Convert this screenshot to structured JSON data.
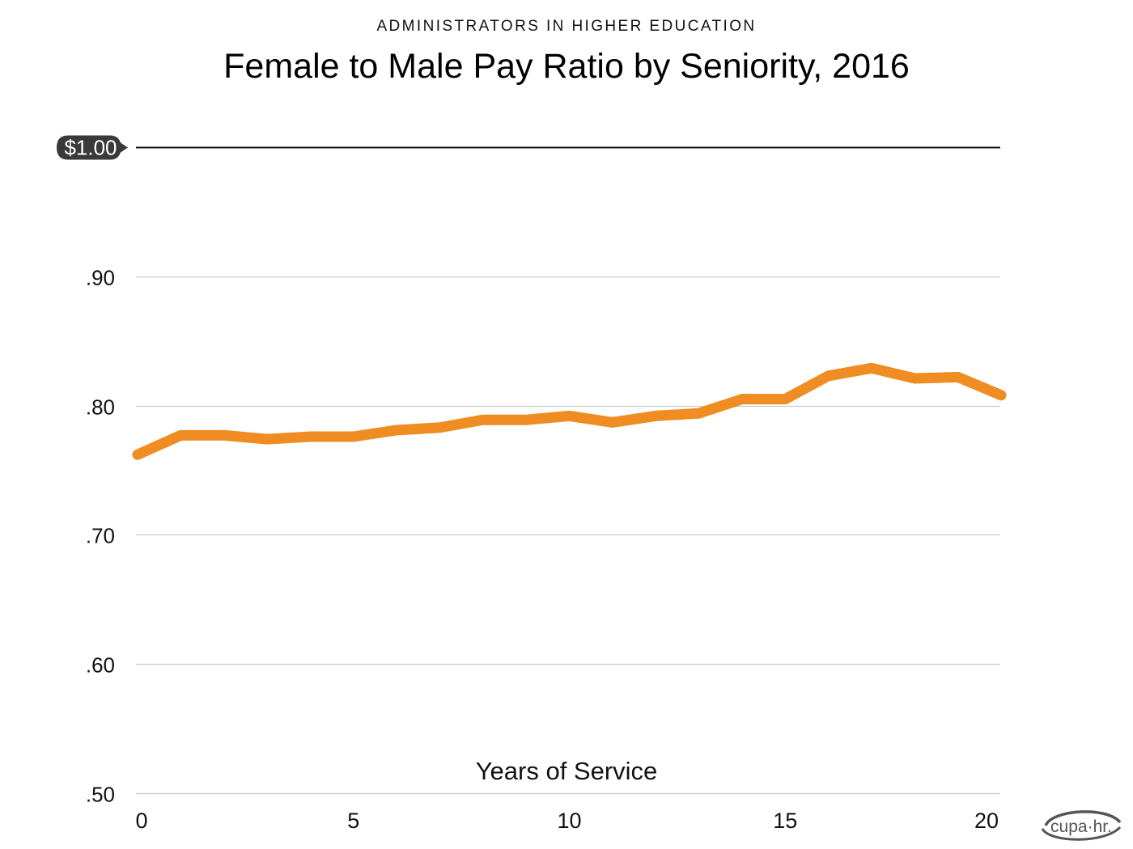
{
  "header": {
    "kicker": "ADMINISTRATORS IN HIGHER EDUCATION",
    "title": "Female to Male Pay Ratio by Seniority, 2016"
  },
  "logo": {
    "text": "cupa·hr."
  },
  "colors": {
    "line": "#ef8c22",
    "grid": "#cccccc",
    "reference": "#111111",
    "badge": "#3a3a3a"
  },
  "chart_data": {
    "type": "line",
    "title": "Female to Male Pay Ratio by Seniority, 2016",
    "subtitle": "ADMINISTRATORS IN HIGHER EDUCATION",
    "xlabel": "Years of Service",
    "ylabel": "",
    "xlim": [
      0,
      20
    ],
    "ylim": [
      0.5,
      1.0
    ],
    "grid": true,
    "x_ticks": [
      0,
      5,
      10,
      15,
      20
    ],
    "x_tick_labels": [
      "0",
      "5",
      "10",
      "15",
      "20"
    ],
    "y_ticks": [
      0.5,
      0.6,
      0.7,
      0.8,
      0.9,
      1.0
    ],
    "y_tick_labels": [
      ".50",
      ".60",
      ".70",
      ".80",
      ".90",
      "$1.00"
    ],
    "reference_line": {
      "value": 1.0,
      "label": "$1.00"
    },
    "x": [
      0,
      1,
      2,
      3,
      4,
      5,
      6,
      7,
      8,
      9,
      10,
      11,
      12,
      13,
      14,
      15,
      16,
      17,
      18,
      19,
      20
    ],
    "series": [
      {
        "name": "Female to Male Pay Ratio",
        "values": [
          0.762,
          0.777,
          0.777,
          0.774,
          0.776,
          0.776,
          0.781,
          0.783,
          0.789,
          0.789,
          0.792,
          0.787,
          0.792,
          0.794,
          0.805,
          0.805,
          0.823,
          0.829,
          0.821,
          0.822,
          0.808
        ]
      }
    ]
  }
}
